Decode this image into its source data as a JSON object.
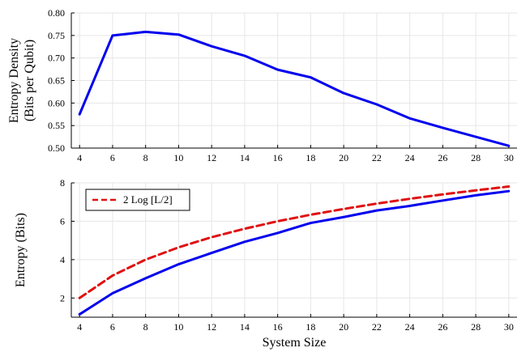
{
  "chart_data": [
    {
      "type": "line",
      "title": "",
      "xlabel": "",
      "ylabel_lines": [
        "Entropy Density",
        "(Bits per Qubit)"
      ],
      "xlim": [
        3.5,
        30.5
      ],
      "ylim": [
        0.5,
        0.8
      ],
      "xticks": [
        4,
        6,
        8,
        10,
        12,
        14,
        16,
        18,
        20,
        22,
        24,
        26,
        28,
        30
      ],
      "yticks": [
        0.5,
        0.55,
        0.6,
        0.65,
        0.7,
        0.75,
        0.8
      ],
      "ytick_labels": [
        "0.50",
        "0.55",
        "0.60",
        "0.65",
        "0.70",
        "0.75",
        "0.80"
      ],
      "grid": true,
      "series": [
        {
          "color": "#0000ee",
          "dash": "solid",
          "x": [
            4,
            6,
            8,
            10,
            12,
            14,
            16,
            18,
            20,
            22,
            24,
            26,
            28,
            30
          ],
          "y": [
            0.575,
            0.75,
            0.758,
            0.752,
            0.726,
            0.705,
            0.674,
            0.657,
            0.622,
            0.597,
            0.566,
            0.545,
            0.525,
            0.505
          ]
        }
      ]
    },
    {
      "type": "line",
      "title": "",
      "xlabel": "System Size",
      "ylabel_lines": [
        "Entropy (Bits)"
      ],
      "xlim": [
        3.5,
        30.5
      ],
      "ylim": [
        1.0,
        8.0
      ],
      "xticks": [
        4,
        6,
        8,
        10,
        12,
        14,
        16,
        18,
        20,
        22,
        24,
        26,
        28,
        30
      ],
      "yticks": [
        2,
        4,
        6,
        8
      ],
      "ytick_labels": [
        "2",
        "4",
        "6",
        "8"
      ],
      "grid": true,
      "legend": "top-left",
      "series": [
        {
          "name": "2 Log [L/2]",
          "color": "#e01010",
          "dash": "dashed",
          "x": [
            4,
            6,
            8,
            10,
            12,
            14,
            16,
            18,
            20,
            22,
            24,
            26,
            28,
            30
          ],
          "y": [
            2.0,
            3.17,
            4.0,
            4.64,
            5.17,
            5.61,
            6.0,
            6.34,
            6.64,
            6.92,
            7.17,
            7.4,
            7.61,
            7.81
          ]
        },
        {
          "color": "#0000ee",
          "dash": "solid",
          "x": [
            4,
            6,
            8,
            10,
            12,
            14,
            16,
            18,
            20,
            22,
            24,
            26,
            28,
            30
          ],
          "y": [
            1.15,
            2.25,
            3.03,
            3.76,
            4.35,
            4.93,
            5.39,
            5.91,
            6.22,
            6.56,
            6.8,
            7.08,
            7.35,
            7.57
          ]
        }
      ]
    }
  ]
}
